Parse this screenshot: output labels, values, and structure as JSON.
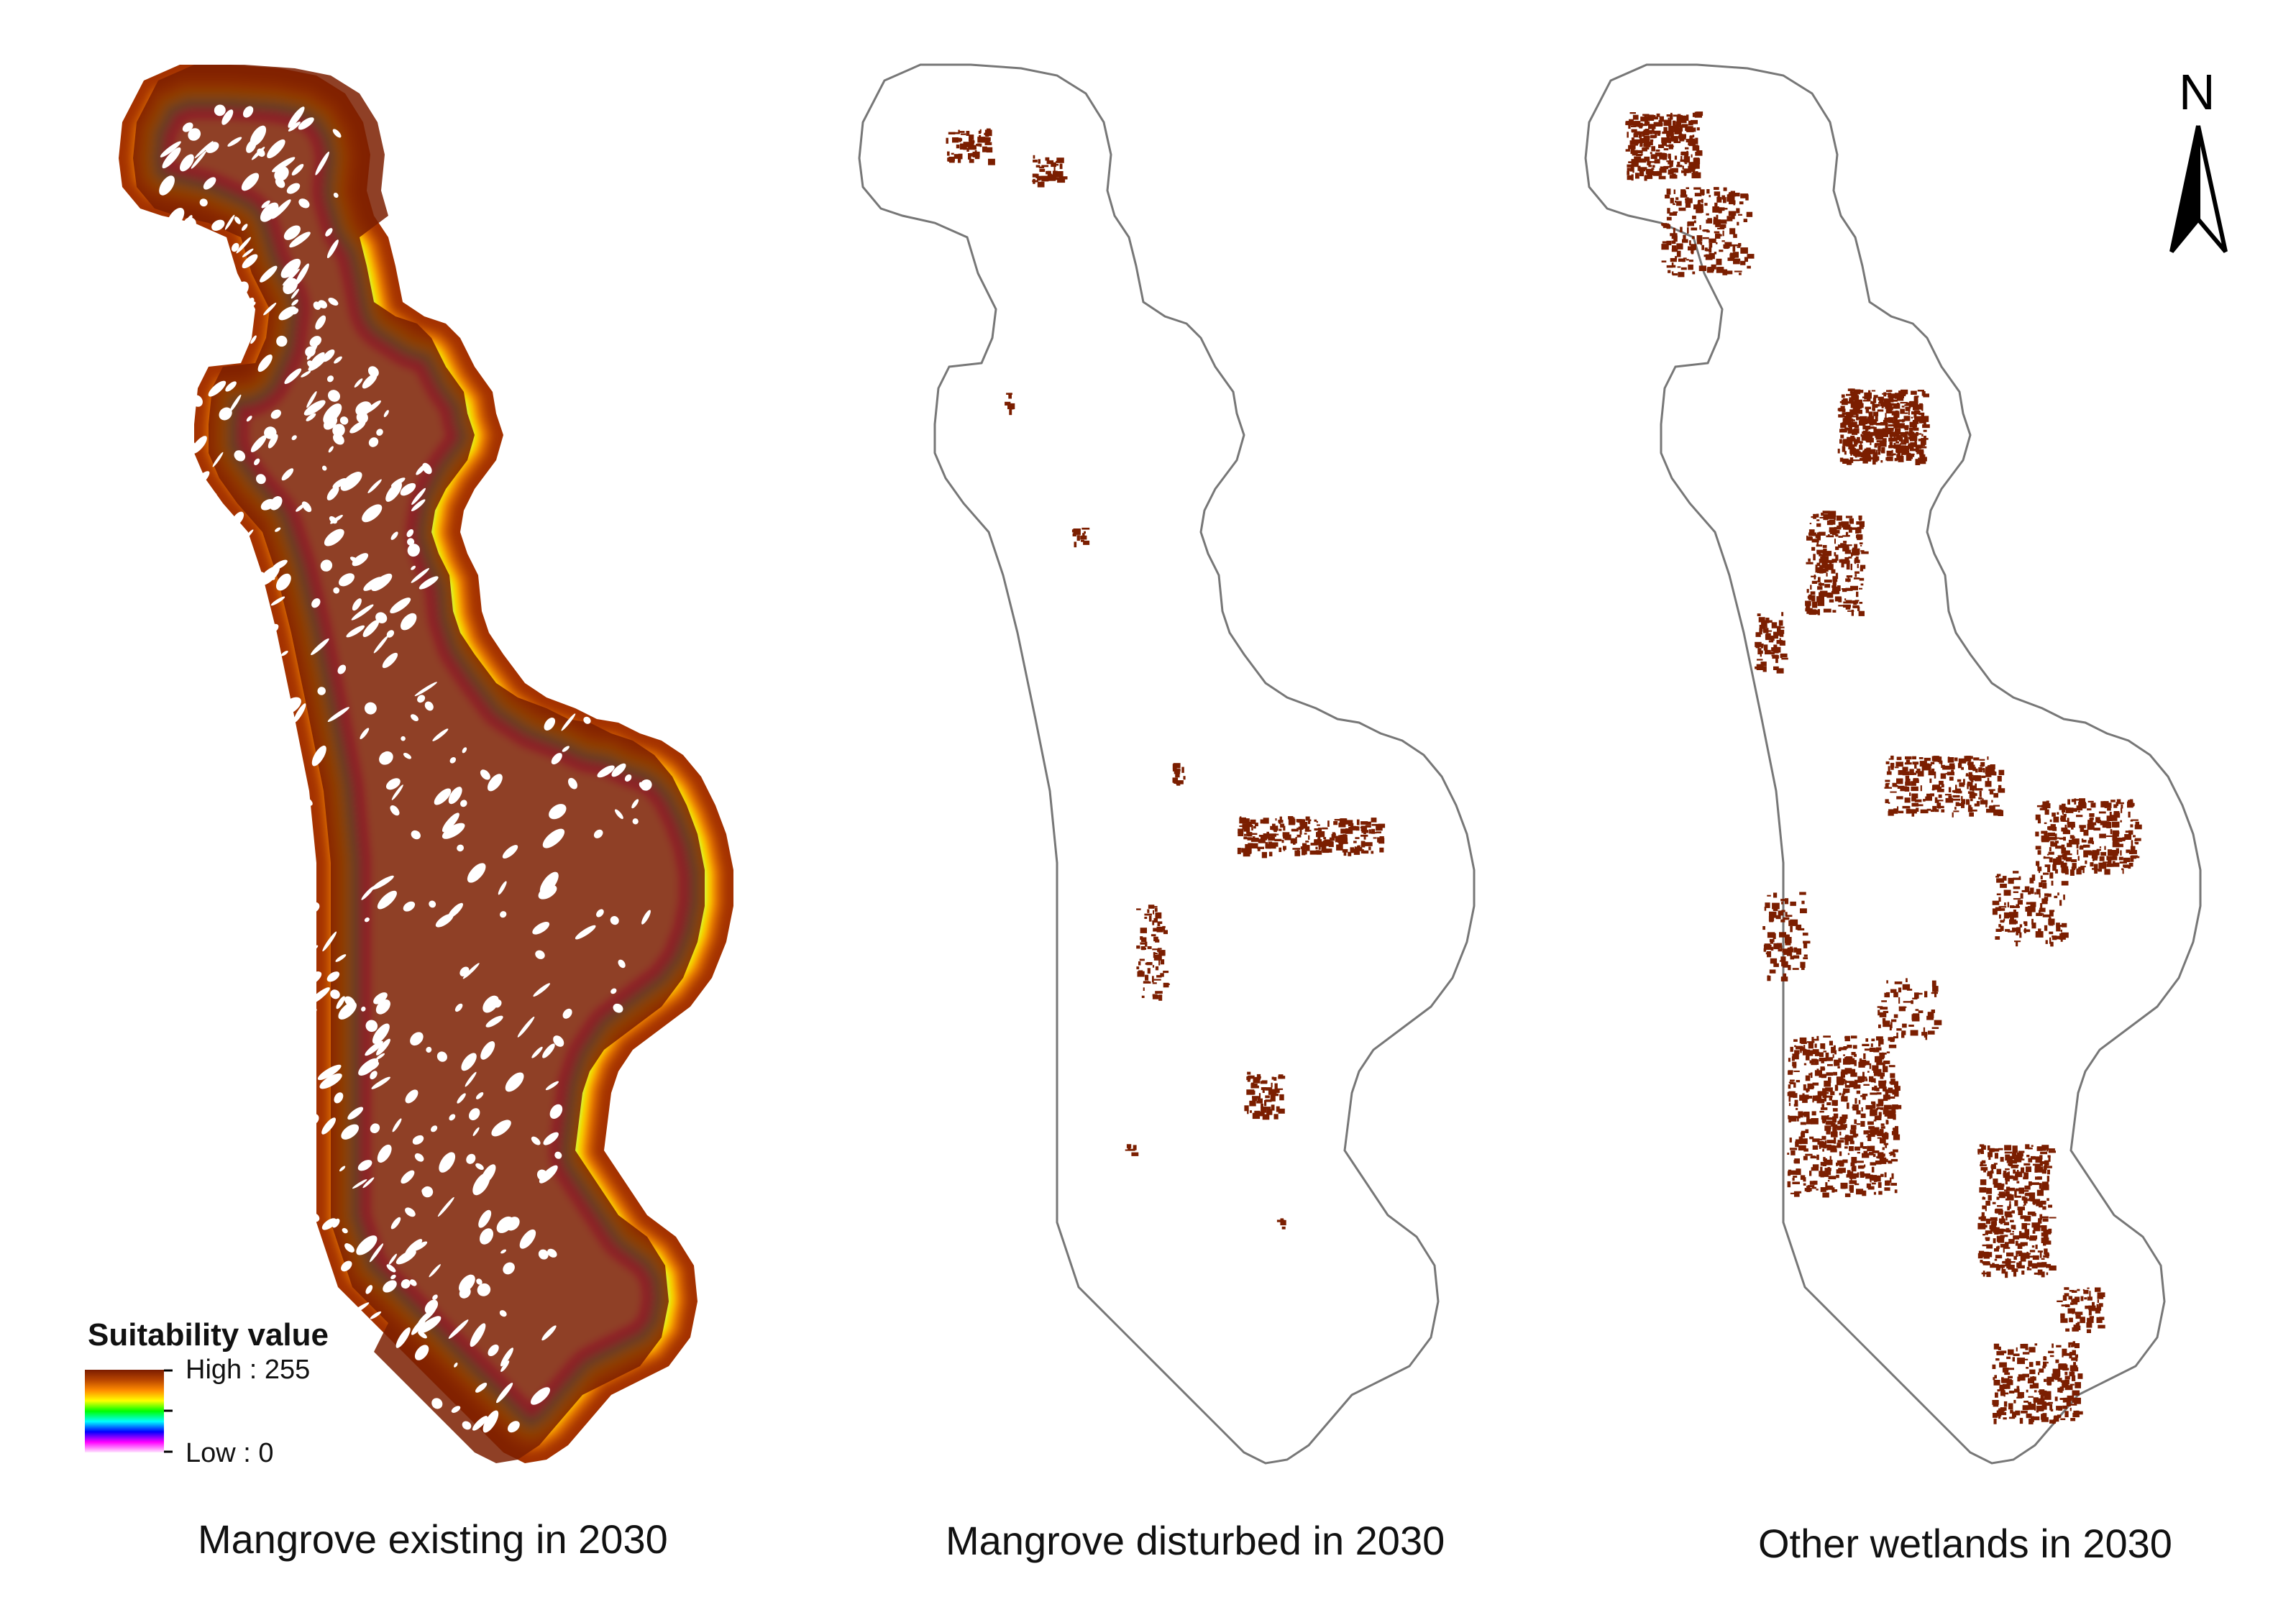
{
  "maps": [
    {
      "caption": "Mangrove existing in 2030",
      "style": "gradient"
    },
    {
      "caption": "Mangrove disturbed in 2030",
      "style": "outline"
    },
    {
      "caption": "Other wetlands in 2030",
      "style": "outline"
    }
  ],
  "legend": {
    "title": "Suitability value",
    "high_label": "High : 255",
    "low_label": "Low : 0",
    "ramp_colors": [
      "#7a1c00",
      "#b94600",
      "#ff8c00",
      "#ffff00",
      "#00ff00",
      "#00ffff",
      "#0000ff",
      "#ff00ff",
      "#ffe6ff"
    ]
  },
  "north_arrow": {
    "label": "N"
  },
  "colors": {
    "patch": "#7b1e00",
    "outline": "#777777",
    "background": "#ffffff"
  }
}
